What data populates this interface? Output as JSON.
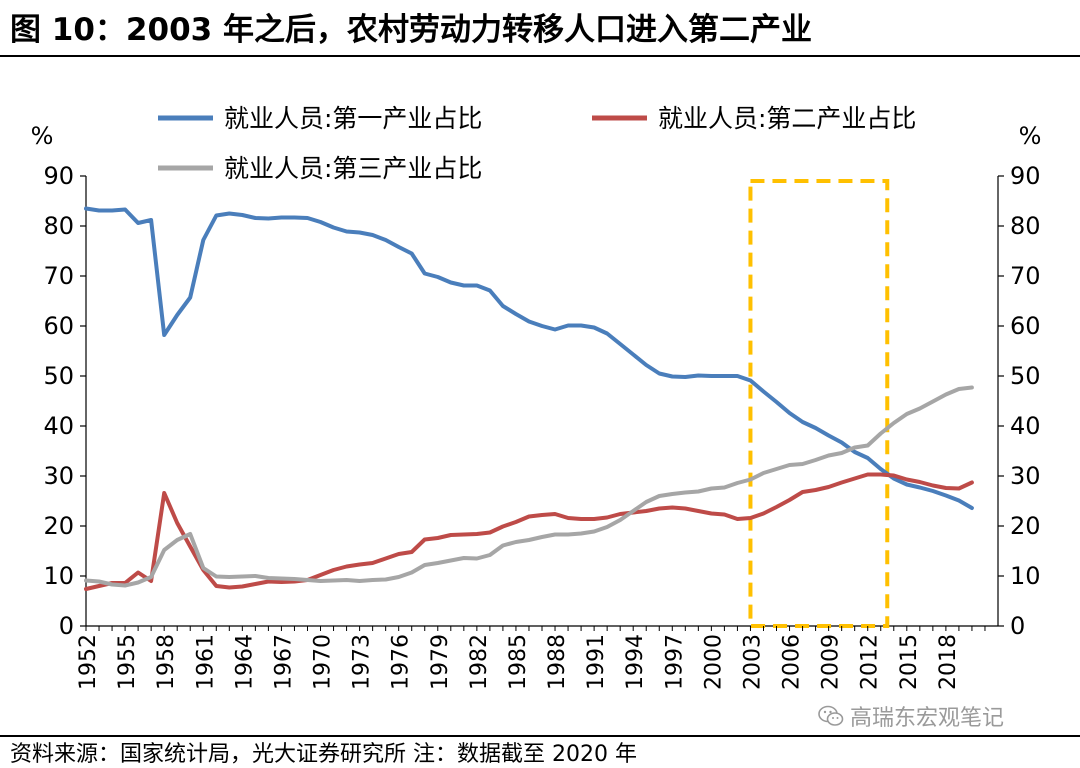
{
  "header": {
    "title": "图 10：2003 年之后，农村劳动力转移人口进入第二产业"
  },
  "footer": {
    "source": "资料来源：国家统计局，光大证券研究所 注：数据截至 2020 年",
    "watermark": "高瑞东宏观笔记",
    "watermark_icon": "wechat-icon"
  },
  "colors": {
    "primary": "#4A7EBB",
    "secondary": "#BE4B48",
    "tertiary": "#A6A6A6",
    "highlight_box": "#FFC000"
  },
  "chart_data": {
    "type": "line",
    "title": "",
    "xlabel": "",
    "ylabel_left": "%",
    "ylabel_right": "%",
    "ylim": [
      0,
      90
    ],
    "yticks": [
      0,
      10,
      20,
      30,
      40,
      50,
      60,
      70,
      80,
      90
    ],
    "y2lim": [
      0,
      90
    ],
    "grid": false,
    "legend_position": "top",
    "x_tick_labels": [
      "1952",
      "1955",
      "1958",
      "1961",
      "1964",
      "1967",
      "1970",
      "1973",
      "1976",
      "1979",
      "1982",
      "1985",
      "1988",
      "1991",
      "1994",
      "1997",
      "2000",
      "2003",
      "2006",
      "2009",
      "2012",
      "2015",
      "2018"
    ],
    "x": [
      1952,
      1953,
      1954,
      1955,
      1956,
      1957,
      1958,
      1959,
      1960,
      1961,
      1962,
      1963,
      1964,
      1965,
      1966,
      1967,
      1968,
      1969,
      1970,
      1971,
      1972,
      1973,
      1974,
      1975,
      1976,
      1977,
      1978,
      1979,
      1980,
      1981,
      1982,
      1983,
      1984,
      1985,
      1986,
      1987,
      1988,
      1989,
      1990,
      1991,
      1992,
      1993,
      1994,
      1995,
      1996,
      1997,
      1998,
      1999,
      2000,
      2001,
      2002,
      2003,
      2004,
      2005,
      2006,
      2007,
      2008,
      2009,
      2010,
      2011,
      2012,
      2013,
      2014,
      2015,
      2016,
      2017,
      2018,
      2019,
      2020
    ],
    "series": [
      {
        "name": "就业人员:第一产业占比",
        "color": "#4A7EBB",
        "values": [
          83.5,
          83.1,
          83.1,
          83.3,
          80.6,
          81.2,
          58.2,
          62.2,
          65.7,
          77.2,
          82.1,
          82.5,
          82.2,
          81.6,
          81.5,
          81.7,
          81.7,
          81.6,
          80.8,
          79.7,
          78.9,
          78.7,
          78.2,
          77.2,
          75.8,
          74.5,
          70.5,
          69.8,
          68.7,
          68.1,
          68.1,
          67.1,
          64.0,
          62.4,
          60.9,
          60.0,
          59.3,
          60.1,
          60.1,
          59.7,
          58.5,
          56.4,
          54.3,
          52.2,
          50.5,
          49.9,
          49.8,
          50.1,
          50.0,
          50.0,
          50.0,
          49.1,
          46.9,
          44.8,
          42.6,
          40.8,
          39.6,
          38.1,
          36.7,
          34.8,
          33.6,
          31.4,
          29.5,
          28.3,
          27.7,
          27.0,
          26.1,
          25.1,
          23.6
        ]
      },
      {
        "name": "就业人员:第二产业占比",
        "color": "#BE4B48",
        "values": [
          7.4,
          8.0,
          8.6,
          8.6,
          10.7,
          9.0,
          26.6,
          20.6,
          15.9,
          11.2,
          8.0,
          7.7,
          7.9,
          8.4,
          8.9,
          8.8,
          8.9,
          9.2,
          10.2,
          11.2,
          11.9,
          12.3,
          12.6,
          13.5,
          14.4,
          14.8,
          17.3,
          17.6,
          18.2,
          18.3,
          18.4,
          18.7,
          19.9,
          20.8,
          21.9,
          22.2,
          22.4,
          21.6,
          21.4,
          21.4,
          21.7,
          22.4,
          22.7,
          23.0,
          23.5,
          23.7,
          23.5,
          23.0,
          22.5,
          22.3,
          21.4,
          21.6,
          22.5,
          23.8,
          25.2,
          26.8,
          27.2,
          27.8,
          28.7,
          29.5,
          30.3,
          30.3,
          30.1,
          29.3,
          28.8,
          28.1,
          27.6,
          27.5,
          28.7
        ]
      },
      {
        "name": "就业人员:第三产业占比",
        "color": "#A6A6A6",
        "values": [
          9.1,
          8.9,
          8.3,
          8.1,
          8.7,
          9.8,
          15.2,
          17.2,
          18.4,
          11.6,
          9.9,
          9.8,
          9.9,
          10.0,
          9.6,
          9.5,
          9.4,
          9.2,
          9.0,
          9.1,
          9.2,
          9.0,
          9.2,
          9.3,
          9.8,
          10.7,
          12.2,
          12.6,
          13.1,
          13.6,
          13.5,
          14.2,
          16.1,
          16.8,
          17.2,
          17.8,
          18.3,
          18.3,
          18.5,
          18.9,
          19.8,
          21.2,
          23.0,
          24.8,
          26.0,
          26.4,
          26.7,
          26.9,
          27.5,
          27.7,
          28.6,
          29.3,
          30.6,
          31.4,
          32.2,
          32.4,
          33.2,
          34.1,
          34.6,
          35.7,
          36.1,
          38.5,
          40.6,
          42.4,
          43.5,
          44.9,
          46.3,
          47.4,
          47.7
        ]
      }
    ],
    "annotations": [
      {
        "type": "highlight_box",
        "from": 2003,
        "to": 2013.5,
        "y_from": 0,
        "y_to": 89,
        "style": "dashed",
        "color": "#FFC000"
      }
    ]
  }
}
